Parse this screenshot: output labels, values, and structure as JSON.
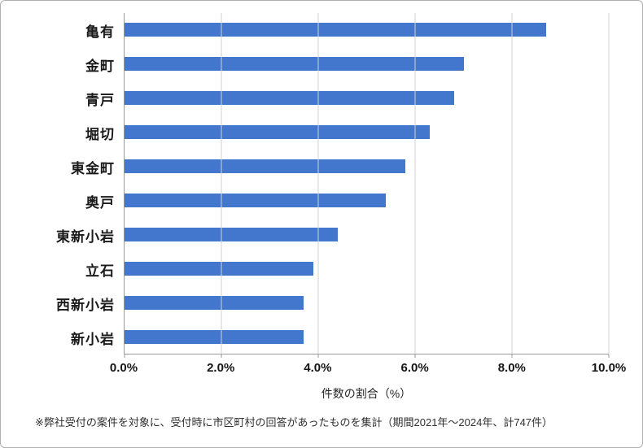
{
  "chart_data": {
    "type": "bar",
    "orientation": "horizontal",
    "title": "",
    "categories": [
      "亀有",
      "金町",
      "青戸",
      "堀切",
      "東金町",
      "奥戸",
      "東新小岩",
      "立石",
      "西新小岩",
      "新小岩"
    ],
    "values": [
      8.7,
      7.0,
      6.8,
      6.3,
      5.8,
      5.4,
      4.4,
      3.9,
      3.7,
      3.7
    ],
    "xlabel": "件数の割合（%）",
    "ylabel": "",
    "xlim": [
      0,
      10
    ],
    "x_ticks": [
      "0.0%",
      "2.0%",
      "4.0%",
      "6.0%",
      "8.0%",
      "10.0%"
    ],
    "grid": true,
    "legend_position": "none",
    "bar_color": "#4377CD",
    "gridline_color": "#d2d2d2",
    "axis_line_color": "#9a9a9a"
  },
  "footer": {
    "note": "※弊社受付の案件を対象に、受付時に市区町村の回答があったものを集計（期間2021年～2024年、計747件）"
  }
}
